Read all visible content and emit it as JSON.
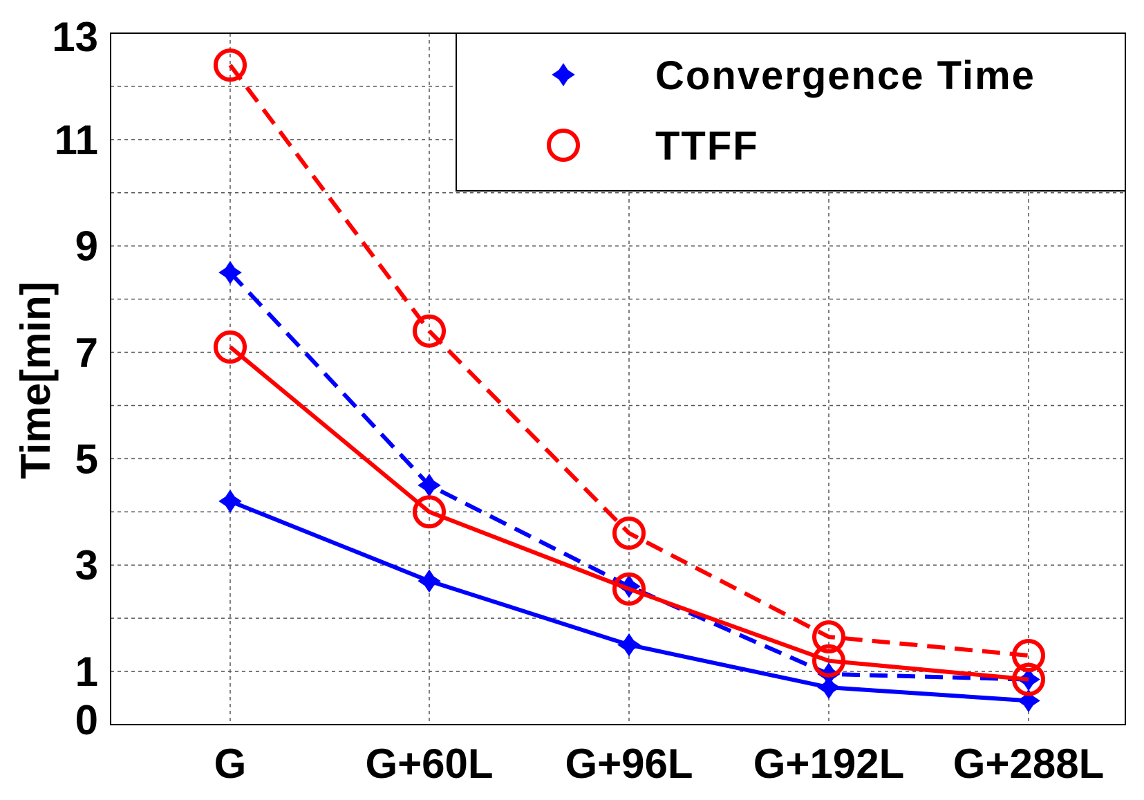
{
  "chart_data": {
    "type": "line",
    "title": "",
    "xlabel": "",
    "ylabel": "Time[min]",
    "categories": [
      "G",
      "G+60L",
      "G+96L",
      "G+192L",
      "G+288L"
    ],
    "ylim": [
      0,
      13
    ],
    "yticks": [
      0,
      1,
      3,
      5,
      7,
      9,
      11,
      13
    ],
    "grid": true,
    "legend_position": "top-right",
    "legend": [
      {
        "label": "Convergence Time",
        "marker": "plus-diamond",
        "color": "#0000ff"
      },
      {
        "label": "TTFF",
        "marker": "circle",
        "color": "#ff0000"
      }
    ],
    "series": [
      {
        "name": "Convergence Time (dashed)",
        "legend_group": "Convergence Time",
        "color": "#0000ff",
        "style": "dashed",
        "marker": "plus-diamond",
        "values": [
          8.5,
          4.5,
          2.6,
          0.95,
          0.85
        ]
      },
      {
        "name": "Convergence Time (solid)",
        "legend_group": "Convergence Time",
        "color": "#0000ff",
        "style": "solid",
        "marker": "plus-diamond",
        "values": [
          4.2,
          2.7,
          1.5,
          0.7,
          0.45
        ]
      },
      {
        "name": "TTFF (dashed)",
        "legend_group": "TTFF",
        "color": "#ff0000",
        "style": "dashed",
        "marker": "circle",
        "values": [
          12.4,
          7.4,
          3.6,
          1.65,
          1.3
        ]
      },
      {
        "name": "TTFF (solid)",
        "legend_group": "TTFF",
        "color": "#ff0000",
        "style": "solid",
        "marker": "circle",
        "values": [
          7.1,
          4.0,
          2.55,
          1.2,
          0.85
        ]
      }
    ]
  }
}
